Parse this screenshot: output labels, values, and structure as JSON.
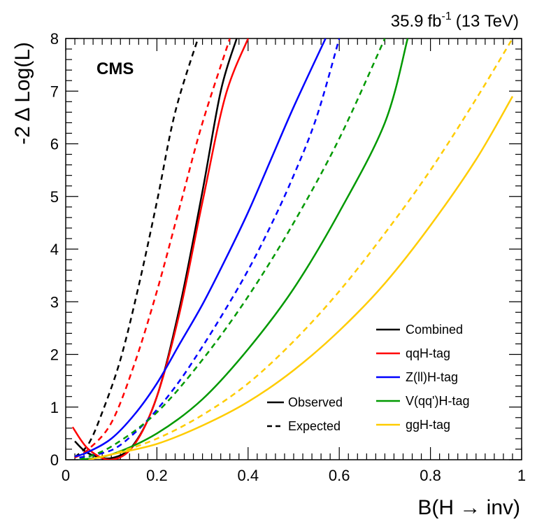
{
  "chart_data": {
    "type": "line",
    "experiment_label": "CMS",
    "lumi_label": "35.9",
    "lumi_unit": "fb",
    "lumi_exponent": "-1",
    "energy_label": "(13 TeV)",
    "xlabel": "B(H → inv)",
    "ylabel": "-2 Δ Log(L)",
    "xlim": [
      0,
      1
    ],
    "ylim": [
      0,
      8
    ],
    "xticks": [
      "0",
      "0.2",
      "0.4",
      "0.6",
      "0.8",
      "1"
    ],
    "yticks": [
      "0",
      "1",
      "2",
      "3",
      "4",
      "5",
      "6",
      "7",
      "8"
    ],
    "style_legend": {
      "observed_label": "Observed",
      "expected_label": "Expected"
    },
    "series": [
      {
        "name": "Combined",
        "color": "#000000",
        "observed": [
          [
            0.02,
            0.35
          ],
          [
            0.05,
            0.12
          ],
          [
            0.1,
            0.03
          ],
          [
            0.15,
            0.3
          ],
          [
            0.2,
            1.2
          ],
          [
            0.25,
            2.9
          ],
          [
            0.3,
            5.1
          ],
          [
            0.34,
            7.0
          ],
          [
            0.375,
            8.0
          ]
        ],
        "expected": [
          [
            0.02,
            0.05
          ],
          [
            0.05,
            0.3
          ],
          [
            0.08,
            0.9
          ],
          [
            0.12,
            1.9
          ],
          [
            0.16,
            3.3
          ],
          [
            0.2,
            4.9
          ],
          [
            0.24,
            6.6
          ],
          [
            0.29,
            8.0
          ]
        ]
      },
      {
        "name": "qqH-tag",
        "color": "#ff0000",
        "observed": [
          [
            0.015,
            0.62
          ],
          [
            0.05,
            0.2
          ],
          [
            0.1,
            0.0
          ],
          [
            0.15,
            0.28
          ],
          [
            0.2,
            1.2
          ],
          [
            0.25,
            2.8
          ],
          [
            0.3,
            4.9
          ],
          [
            0.35,
            6.9
          ],
          [
            0.4,
            8.0
          ]
        ],
        "expected": [
          [
            0.02,
            0.04
          ],
          [
            0.05,
            0.2
          ],
          [
            0.1,
            0.7
          ],
          [
            0.15,
            1.8
          ],
          [
            0.2,
            3.2
          ],
          [
            0.25,
            4.8
          ],
          [
            0.3,
            6.4
          ],
          [
            0.36,
            8.0
          ]
        ]
      },
      {
        "name": "Z(ll)H-tag",
        "color": "#0000ff",
        "observed": [
          [
            0.02,
            0.06
          ],
          [
            0.05,
            0.15
          ],
          [
            0.1,
            0.4
          ],
          [
            0.15,
            0.85
          ],
          [
            0.2,
            1.45
          ],
          [
            0.25,
            2.2
          ],
          [
            0.3,
            2.95
          ],
          [
            0.35,
            3.8
          ],
          [
            0.4,
            4.7
          ],
          [
            0.45,
            5.7
          ],
          [
            0.5,
            6.7
          ],
          [
            0.57,
            8.0
          ]
        ],
        "expected": [
          [
            0.03,
            0.04
          ],
          [
            0.1,
            0.18
          ],
          [
            0.15,
            0.5
          ],
          [
            0.2,
            0.95
          ],
          [
            0.25,
            1.5
          ],
          [
            0.3,
            2.15
          ],
          [
            0.35,
            2.85
          ],
          [
            0.4,
            3.6
          ],
          [
            0.45,
            4.45
          ],
          [
            0.5,
            5.4
          ],
          [
            0.55,
            6.5
          ],
          [
            0.6,
            8.0
          ]
        ]
      },
      {
        "name": "V(qq')H-tag",
        "color": "#009900",
        "observed": [
          [
            0.03,
            0.0
          ],
          [
            0.1,
            0.1
          ],
          [
            0.2,
            0.5
          ],
          [
            0.3,
            1.15
          ],
          [
            0.4,
            2.1
          ],
          [
            0.5,
            3.25
          ],
          [
            0.6,
            4.7
          ],
          [
            0.7,
            6.4
          ],
          [
            0.75,
            8.0
          ]
        ],
        "expected": [
          [
            0.03,
            0.0
          ],
          [
            0.1,
            0.25
          ],
          [
            0.2,
            0.9
          ],
          [
            0.3,
            1.9
          ],
          [
            0.4,
            3.1
          ],
          [
            0.5,
            4.5
          ],
          [
            0.6,
            6.1
          ],
          [
            0.7,
            8.0
          ]
        ]
      },
      {
        "name": "ggH-tag",
        "color": "#ffcc00",
        "observed": [
          [
            0.05,
            0.0
          ],
          [
            0.1,
            0.1
          ],
          [
            0.2,
            0.3
          ],
          [
            0.3,
            0.65
          ],
          [
            0.4,
            1.1
          ],
          [
            0.5,
            1.7
          ],
          [
            0.6,
            2.45
          ],
          [
            0.7,
            3.35
          ],
          [
            0.8,
            4.45
          ],
          [
            0.9,
            5.7
          ],
          [
            0.98,
            6.9
          ]
        ],
        "expected": [
          [
            0.05,
            0.0
          ],
          [
            0.1,
            0.1
          ],
          [
            0.2,
            0.4
          ],
          [
            0.3,
            0.85
          ],
          [
            0.4,
            1.45
          ],
          [
            0.5,
            2.25
          ],
          [
            0.6,
            3.2
          ],
          [
            0.7,
            4.3
          ],
          [
            0.8,
            5.5
          ],
          [
            0.9,
            6.85
          ],
          [
            0.98,
            8.0
          ]
        ]
      }
    ]
  }
}
